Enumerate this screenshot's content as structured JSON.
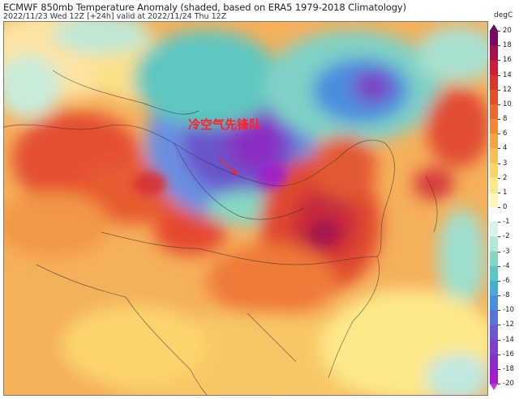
{
  "header": {
    "title": "ECMWF 850mb Temperature Anomaly (shaded, based on ERA5 1979-2018 Climatology)",
    "subtitle": "2022/11/23 Wed 12Z [+24h] valid at 2022/11/24 Thu 12Z"
  },
  "annotation": {
    "text": "冷空气先锋队",
    "color": "#ff2020"
  },
  "colorbar": {
    "unit": "degC",
    "labels": [
      "20",
      "18",
      "16",
      "14",
      "12",
      "10",
      "8",
      "6",
      "4",
      "3",
      "2",
      "1",
      "0",
      "-1",
      "-2",
      "-3",
      "-4",
      "-6",
      "-8",
      "-10",
      "-12",
      "-14",
      "-16",
      "-18",
      "-20"
    ],
    "colors": [
      "#7a0a6a",
      "#a3124f",
      "#c71f3a",
      "#d9362a",
      "#e24f2a",
      "#ea6a31",
      "#f08a3b",
      "#f5a447",
      "#f8bf59",
      "#fbd56c",
      "#fde889",
      "#fff6b8",
      "#ffffff",
      "#d9f3ea",
      "#b3e8d8",
      "#86d8c3",
      "#5ec7bf",
      "#46aed2",
      "#4a8fdd",
      "#5b71d6",
      "#6c57cc",
      "#7b41c7",
      "#8a2ec3",
      "#a21fc7"
    ]
  }
}
